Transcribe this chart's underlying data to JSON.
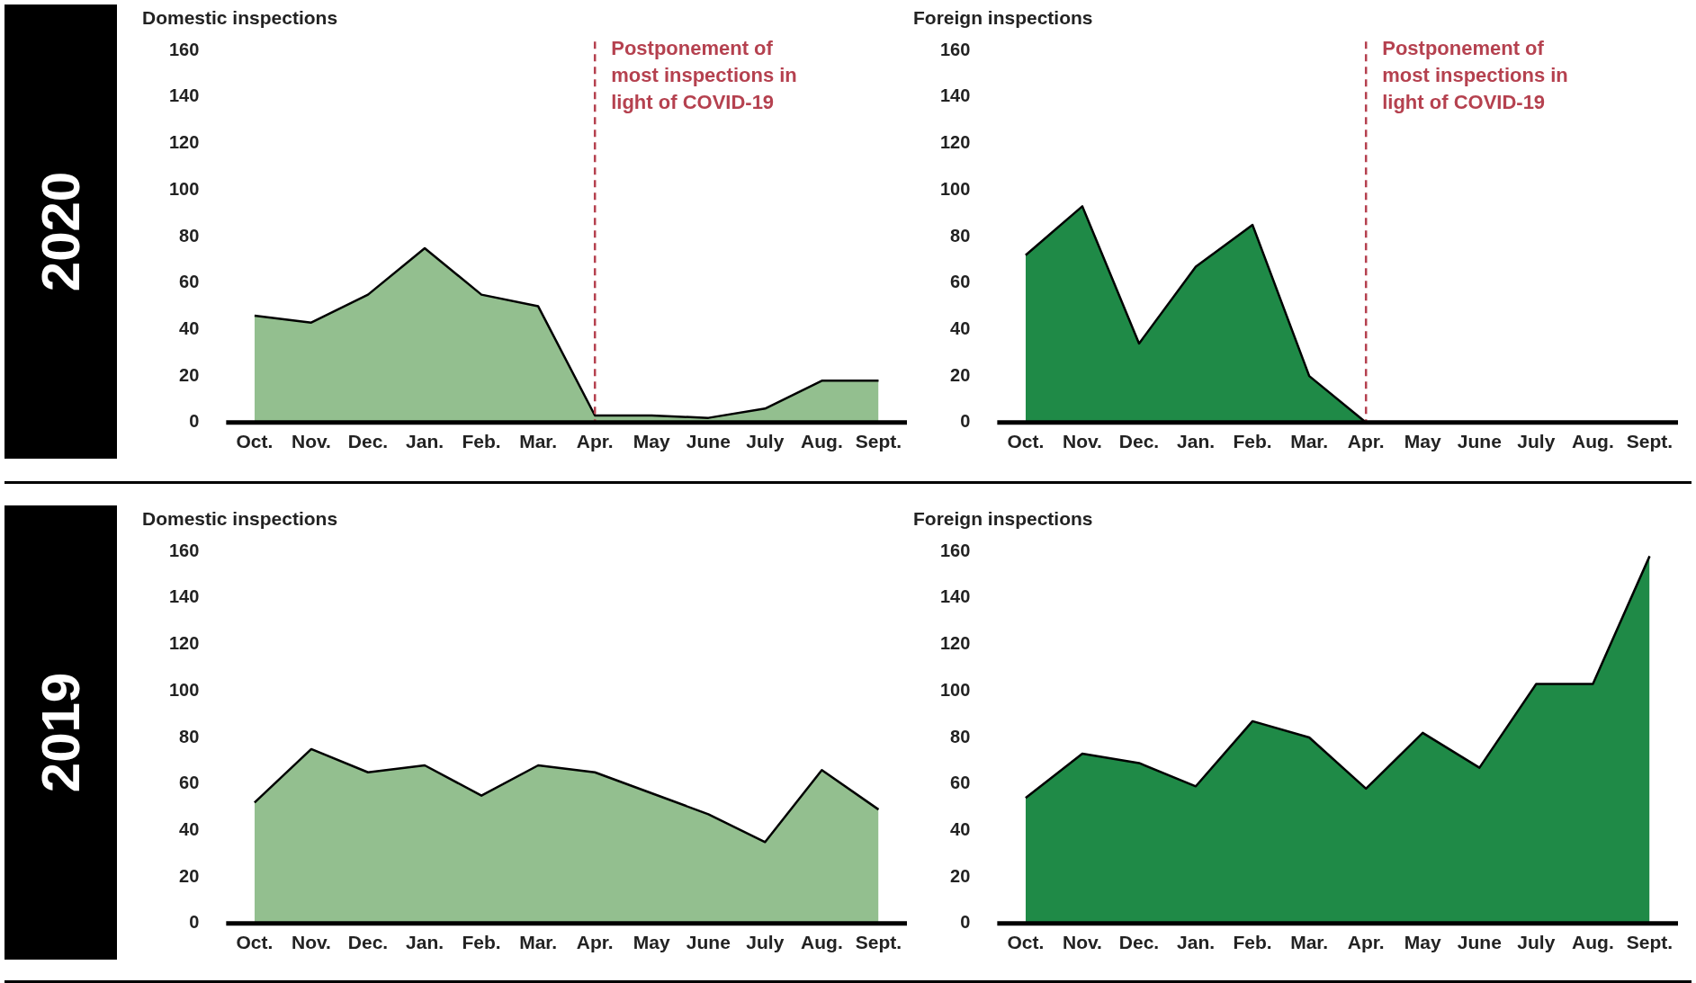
{
  "chart_data": [
    {
      "type": "area",
      "title": "Domestic inspections",
      "annotations": [
        "2020"
      ],
      "categories": [
        "Oct.",
        "Nov.",
        "Dec.",
        "Jan.",
        "Feb.",
        "Mar.",
        "Apr.",
        "May",
        "June",
        "July",
        "Aug.",
        "Sept."
      ],
      "series": [
        {
          "color": "#93bf8f",
          "values": [
            46,
            43,
            55,
            75,
            55,
            50,
            3,
            3,
            2,
            6,
            18,
            18
          ]
        }
      ],
      "ylim": [
        0,
        160
      ],
      "yticks": [
        0,
        20,
        40,
        60,
        80,
        100,
        120,
        140,
        160
      ],
      "grid": false,
      "legend": false,
      "ref_lines": [
        {
          "axis": "x",
          "value": "Apr.",
          "label": "Postponement of most inspections in light of COVID-19",
          "color": "#b5414f",
          "line_style": "dashed"
        }
      ]
    },
    {
      "type": "area",
      "title": "Foreign inspections",
      "categories": [
        "Oct.",
        "Nov.",
        "Dec.",
        "Jan.",
        "Feb.",
        "Mar.",
        "Apr.",
        "May",
        "June",
        "July",
        "Aug.",
        "Sept."
      ],
      "series": [
        {
          "color": "#1f8a47",
          "values": [
            72,
            93,
            34,
            67,
            85,
            20,
            0,
            0,
            0,
            0,
            0,
            0
          ]
        }
      ],
      "ylim": [
        0,
        160
      ],
      "yticks": [
        0,
        20,
        40,
        60,
        80,
        100,
        120,
        140,
        160
      ],
      "grid": false,
      "legend": false,
      "ref_lines": [
        {
          "axis": "x",
          "value": "Apr.",
          "label": "Postponement of most inspections in light of COVID-19",
          "color": "#b5414f",
          "line_style": "dashed"
        }
      ]
    },
    {
      "type": "area",
      "title": "Domestic inspections",
      "annotations": [
        "2019"
      ],
      "categories": [
        "Oct.",
        "Nov.",
        "Dec.",
        "Jan.",
        "Feb.",
        "Mar.",
        "Apr.",
        "May",
        "June",
        "July",
        "Aug.",
        "Sept."
      ],
      "series": [
        {
          "color": "#93bf8f",
          "values": [
            52,
            75,
            65,
            68,
            55,
            68,
            65,
            56,
            47,
            35,
            66,
            49
          ]
        }
      ],
      "ylim": [
        0,
        160
      ],
      "yticks": [
        0,
        20,
        40,
        60,
        80,
        100,
        120,
        140,
        160
      ],
      "grid": false,
      "legend": false
    },
    {
      "type": "area",
      "title": "Foreign inspections",
      "categories": [
        "Oct.",
        "Nov.",
        "Dec.",
        "Jan.",
        "Feb.",
        "Mar.",
        "Apr.",
        "May",
        "June",
        "July",
        "Aug.",
        "Sept."
      ],
      "series": [
        {
          "color": "#1f8a47",
          "values": [
            54,
            73,
            69,
            59,
            87,
            80,
            58,
            82,
            67,
            103,
            103,
            158
          ]
        }
      ],
      "ylim": [
        0,
        160
      ],
      "yticks": [
        0,
        20,
        40,
        60,
        80,
        100,
        120,
        140,
        160
      ],
      "grid": false,
      "legend": false
    }
  ]
}
